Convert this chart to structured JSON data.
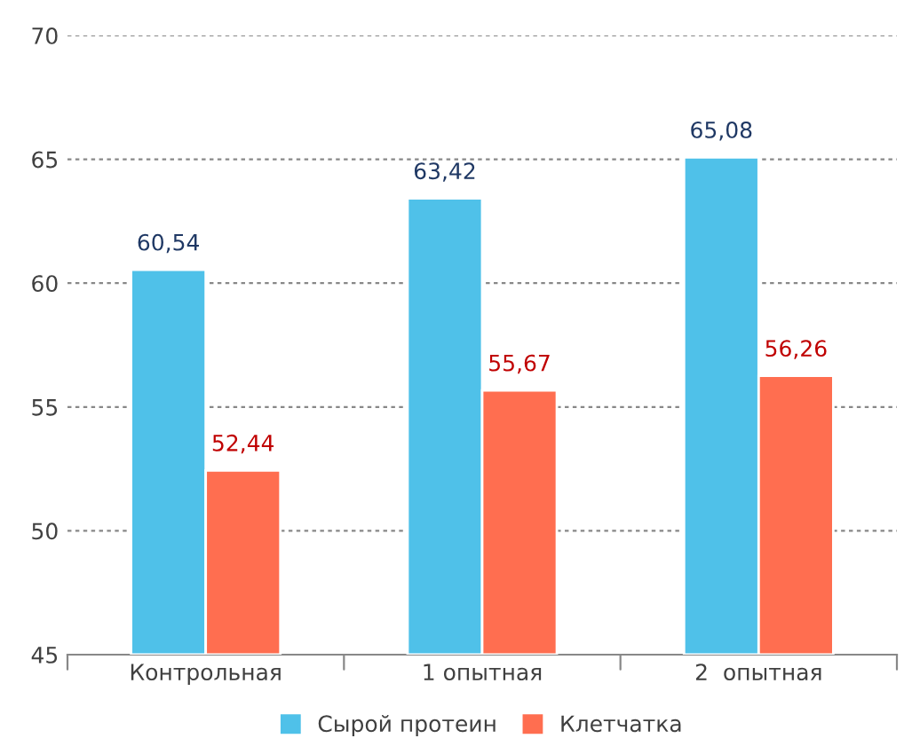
{
  "chart_data": {
    "type": "bar",
    "categories": [
      "Контрольная",
      "1 опытная",
      "2  опытная"
    ],
    "series": [
      {
        "name": "Сырой протеин",
        "color": "#4fc1e9",
        "values": [
          60.54,
          63.42,
          65.08
        ],
        "value_labels": [
          "60,54",
          "63,42",
          "65,08"
        ]
      },
      {
        "name": "Клетчатка",
        "color": "#ff6e50",
        "values": [
          52.44,
          55.67,
          56.26
        ],
        "value_labels": [
          "52,44",
          "55,67",
          "56,26"
        ]
      }
    ],
    "ylim": [
      45,
      70
    ],
    "yticks": [
      45,
      50,
      55,
      60,
      65,
      70
    ],
    "grid": "y",
    "legend": "bottom"
  }
}
